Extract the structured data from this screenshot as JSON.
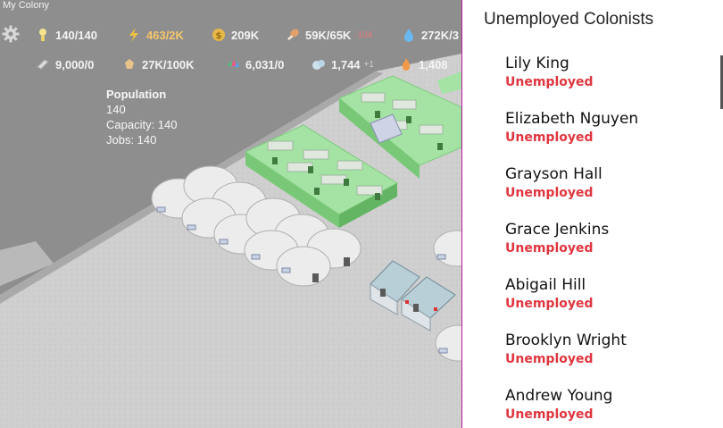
{
  "window": {
    "title": "My Colony"
  },
  "hud": {
    "row1": [
      {
        "name": "colonists",
        "icon": "lightbulb-person-icon",
        "value": "140/140",
        "color": "#f4f4f4"
      },
      {
        "name": "energy",
        "icon": "lightning-icon",
        "value": "463/2K",
        "color": "#f5c66b"
      },
      {
        "name": "money",
        "icon": "coin-icon",
        "value": "209K",
        "color": "#f4f4f4"
      },
      {
        "name": "food",
        "icon": "drumstick-icon",
        "value": "59K/65K",
        "delta": "-104",
        "delta_color": "#e57a7a",
        "color": "#f4f4f4"
      },
      {
        "name": "water",
        "icon": "water-drop-icon",
        "value": "272K/3",
        "color": "#f4f4f4"
      }
    ],
    "row2": [
      {
        "name": "steel",
        "icon": "steel-bar-icon",
        "value": "9,000/0",
        "color": "#f4f4f4"
      },
      {
        "name": "wood",
        "icon": "wood-icon",
        "value": "27K/100K",
        "color": "#f4f4f4"
      },
      {
        "name": "crystals",
        "icon": "crystal-icon",
        "value": "6,031/0",
        "color": "#f4f4f4"
      },
      {
        "name": "ore",
        "icon": "ore-icon",
        "value": "1,744",
        "delta": "+1",
        "delta_color": "#cfcfcf",
        "color": "#f4f4f4"
      },
      {
        "name": "flames",
        "icon": "flame-icon",
        "value": "1,408",
        "delta": "+",
        "delta_color": "#cfcfcf",
        "color": "#f4f4f4"
      }
    ]
  },
  "population_info": {
    "heading": "Population",
    "count": "140",
    "capacity": "Capacity: 140",
    "jobs": "Jobs: 140"
  },
  "panel": {
    "title": "Unemployed Colonists",
    "colonists": [
      {
        "name": "Lily King",
        "status": "Unemployed"
      },
      {
        "name": "Elizabeth Nguyen",
        "status": "Unemployed"
      },
      {
        "name": "Grayson Hall",
        "status": "Unemployed"
      },
      {
        "name": "Grace Jenkins",
        "status": "Unemployed"
      },
      {
        "name": "Abigail Hill",
        "status": "Unemployed"
      },
      {
        "name": "Brooklyn Wright",
        "status": "Unemployed"
      },
      {
        "name": "Andrew Young",
        "status": "Unemployed"
      }
    ],
    "status_color": "#e0353e"
  }
}
